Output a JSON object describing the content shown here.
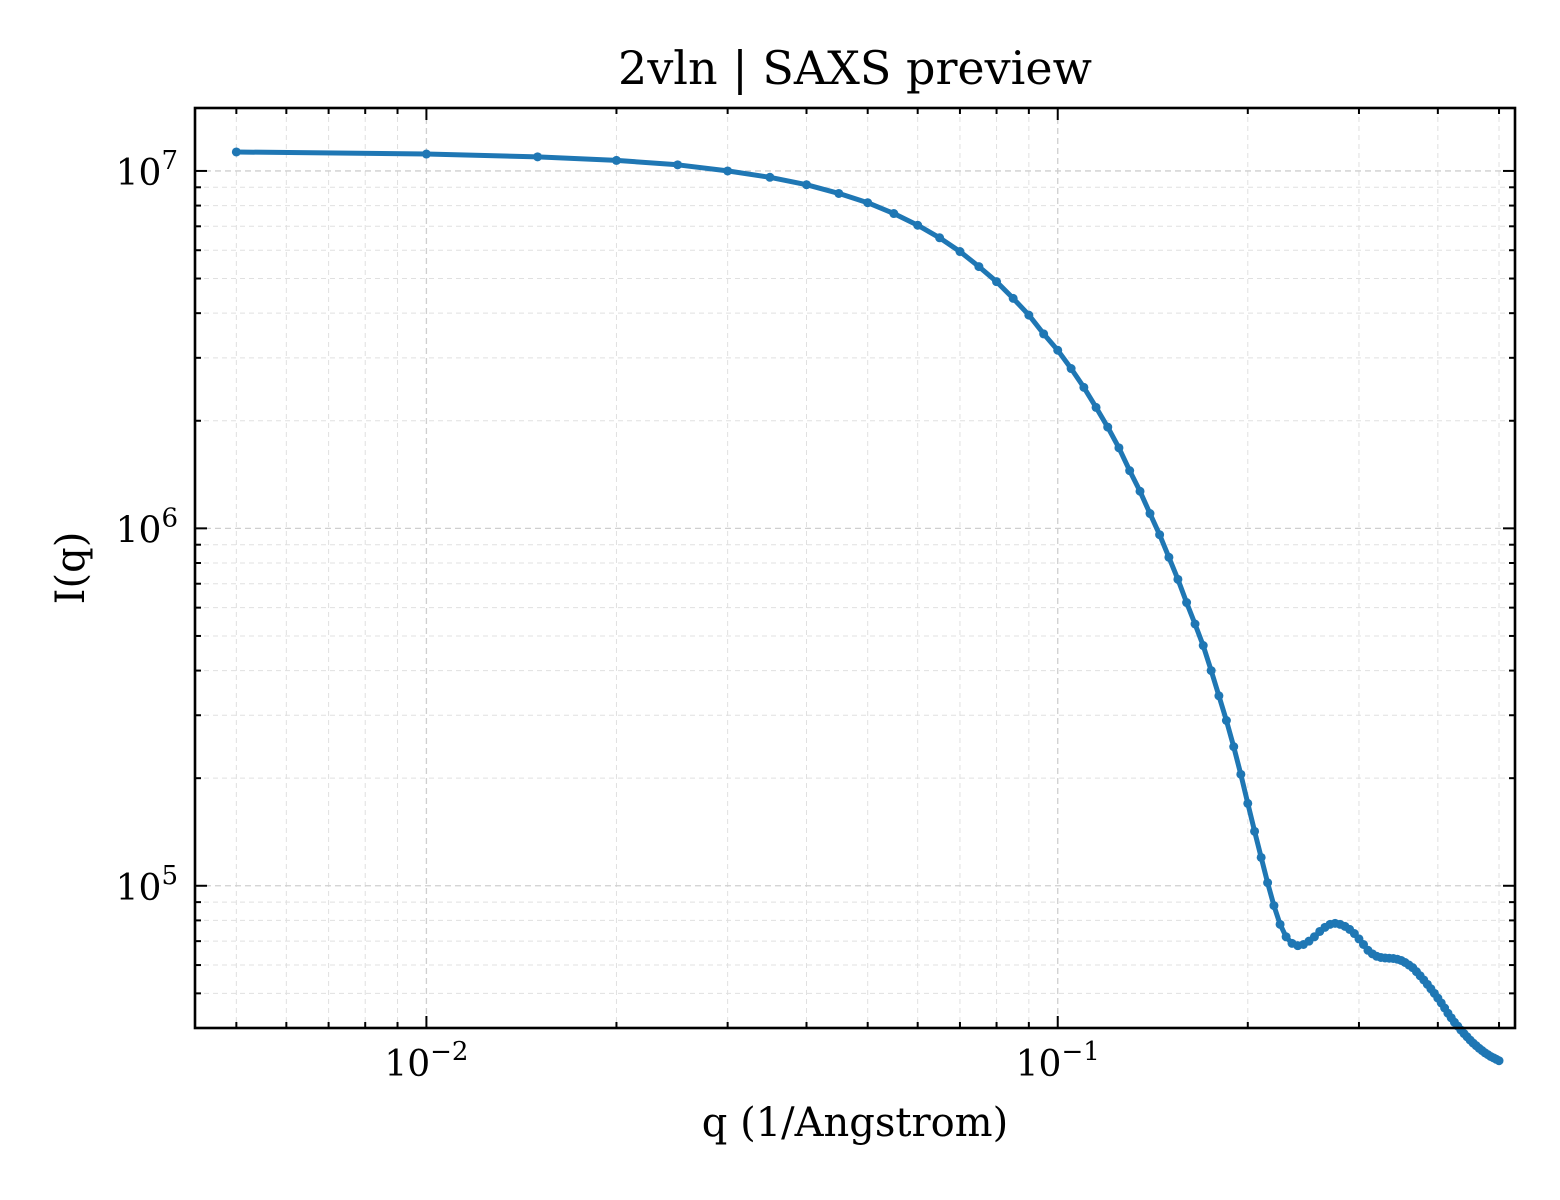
{
  "chart_data": {
    "type": "line",
    "title": "2vln | SAXS preview",
    "xlabel": "q (1/Angstrom)",
    "ylabel": "I(q)",
    "xscale": "log",
    "yscale": "log",
    "xlim": [
      0.0043,
      0.53
    ],
    "ylim": [
      40000,
      15000000
    ],
    "grid": true,
    "legend": "none",
    "color": "#1f77b4",
    "x_ticks": [
      {
        "value": 0.01,
        "base": "10",
        "exp": "−2"
      },
      {
        "value": 0.1,
        "base": "10",
        "exp": "−1"
      }
    ],
    "y_ticks": [
      {
        "value": 100000,
        "base": "10",
        "exp": "5"
      },
      {
        "value": 1000000,
        "base": "10",
        "exp": "6"
      },
      {
        "value": 10000000,
        "base": "10",
        "exp": "7"
      }
    ],
    "series": [
      {
        "x": [
          0.005,
          0.01,
          0.015,
          0.02,
          0.025,
          0.03,
          0.035,
          0.04,
          0.045,
          0.05,
          0.055,
          0.06,
          0.065,
          0.07,
          0.075,
          0.08,
          0.085,
          0.09,
          0.095,
          0.1,
          0.105,
          0.11,
          0.115,
          0.12,
          0.125,
          0.13,
          0.135,
          0.14,
          0.145,
          0.15,
          0.155,
          0.16,
          0.165,
          0.17,
          0.175,
          0.18,
          0.185,
          0.19,
          0.195,
          0.2,
          0.205,
          0.21,
          0.215,
          0.22,
          0.225,
          0.23,
          0.235,
          0.24,
          0.245,
          0.25,
          0.255,
          0.26,
          0.265,
          0.27,
          0.275,
          0.28,
          0.285,
          0.29,
          0.295,
          0.3,
          0.305,
          0.31,
          0.315,
          0.32,
          0.325,
          0.33,
          0.335,
          0.34,
          0.345,
          0.35,
          0.355,
          0.36,
          0.365,
          0.37,
          0.375,
          0.38,
          0.385,
          0.39,
          0.395,
          0.4,
          0.405,
          0.41,
          0.415,
          0.42,
          0.425,
          0.43,
          0.435,
          0.44,
          0.445,
          0.45,
          0.455,
          0.46,
          0.465,
          0.47,
          0.475,
          0.48,
          0.485,
          0.49,
          0.495,
          0.5
        ],
        "y": [
          11300000,
          11150000,
          10950000,
          10700000,
          10400000,
          10000000,
          9600000,
          9150000,
          8650000,
          8150000,
          7600000,
          7050000,
          6500000,
          5950000,
          5400000,
          4900000,
          4400000,
          3950000,
          3500000,
          3150000,
          2800000,
          2480000,
          2180000,
          1920000,
          1680000,
          1450000,
          1270000,
          1100000,
          960000,
          830000,
          720000,
          620000,
          540000,
          470000,
          400000,
          340000,
          290000,
          245000,
          205000,
          170000,
          142000,
          120000,
          102000,
          88000,
          78000,
          72000,
          69000,
          68000,
          68500,
          70000,
          72000,
          74500,
          76500,
          78000,
          78500,
          78000,
          77000,
          75500,
          73500,
          71000,
          68500,
          66000,
          64500,
          63500,
          63000,
          62800,
          62700,
          62600,
          62300,
          61800,
          61000,
          60000,
          59000,
          57500,
          56000,
          54500,
          53000,
          51500,
          50000,
          48500,
          47000,
          45500,
          44000,
          42700,
          41500,
          40500,
          39500,
          38600,
          37800,
          37000,
          36300,
          35700,
          35100,
          34600,
          34100,
          33700,
          33300,
          33000,
          32700,
          32400
        ]
      }
    ]
  }
}
